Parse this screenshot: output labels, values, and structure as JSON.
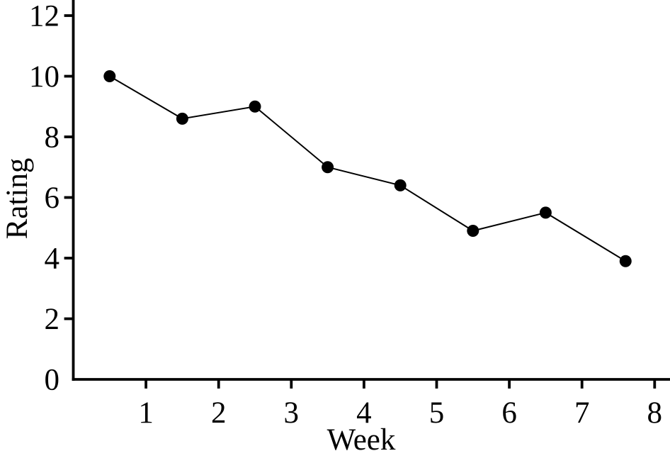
{
  "figure": {
    "background_color": "#ffffff",
    "ink_color": "#000000"
  },
  "chart_data": {
    "type": "line",
    "title": "",
    "xlabel": "Week",
    "ylabel": "Rating",
    "x": [
      0.5,
      1.5,
      2.5,
      3.5,
      4.5,
      5.5,
      6.5,
      7.6
    ],
    "y": [
      10.0,
      8.6,
      9.0,
      7.0,
      6.4,
      4.9,
      5.5,
      3.9
    ],
    "x_ticks": [
      1,
      2,
      3,
      4,
      5,
      6,
      7,
      8
    ],
    "y_ticks": [
      0,
      2,
      4,
      6,
      8,
      10,
      12
    ],
    "xlim": [
      0,
      8.2
    ],
    "ylim": [
      0,
      12.5
    ],
    "grid": false,
    "legend": "none",
    "marker": "filled-circle",
    "line_color": "#000000",
    "marker_color": "#000000"
  }
}
